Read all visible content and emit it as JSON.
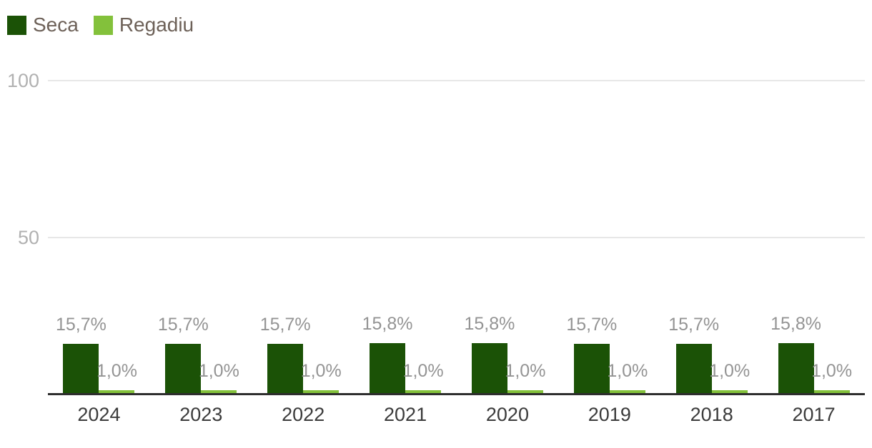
{
  "chart_data": {
    "type": "bar",
    "title": "",
    "categories": [
      "2024",
      "2023",
      "2022",
      "2021",
      "2020",
      "2019",
      "2018",
      "2017"
    ],
    "series": [
      {
        "name": "Seca",
        "color": "#1b5206",
        "values": [
          15.7,
          15.7,
          15.7,
          15.8,
          15.8,
          15.7,
          15.7,
          15.8
        ],
        "labels": [
          "15,7%",
          "15,7%",
          "15,7%",
          "15,8%",
          "15,8%",
          "15,7%",
          "15,7%",
          "15,8%"
        ]
      },
      {
        "name": "Regadiu",
        "color": "#83c13b",
        "values": [
          1.0,
          1.0,
          1.0,
          1.0,
          1.0,
          1.0,
          1.0,
          1.0
        ],
        "labels": [
          "1,0%",
          "1,0%",
          "1,0%",
          "1,0%",
          "1,0%",
          "1,0%",
          "1,0%",
          "1,0%"
        ]
      }
    ],
    "xlabel": "",
    "ylabel": "",
    "ylim": [
      0,
      100
    ],
    "yticks": [
      100,
      50
    ],
    "ytick_labels": [
      "100",
      "50"
    ],
    "grid": true,
    "legend_position": "top-left",
    "colors": {
      "background": "#ffffff",
      "axis_line": "#2e2e2e",
      "gridline": "#e7e7e7",
      "ytick_text": "#b1b1b1",
      "value_label_text": "#949494",
      "category_text": "#3b3b3b",
      "legend_text": "#6d6158"
    }
  }
}
